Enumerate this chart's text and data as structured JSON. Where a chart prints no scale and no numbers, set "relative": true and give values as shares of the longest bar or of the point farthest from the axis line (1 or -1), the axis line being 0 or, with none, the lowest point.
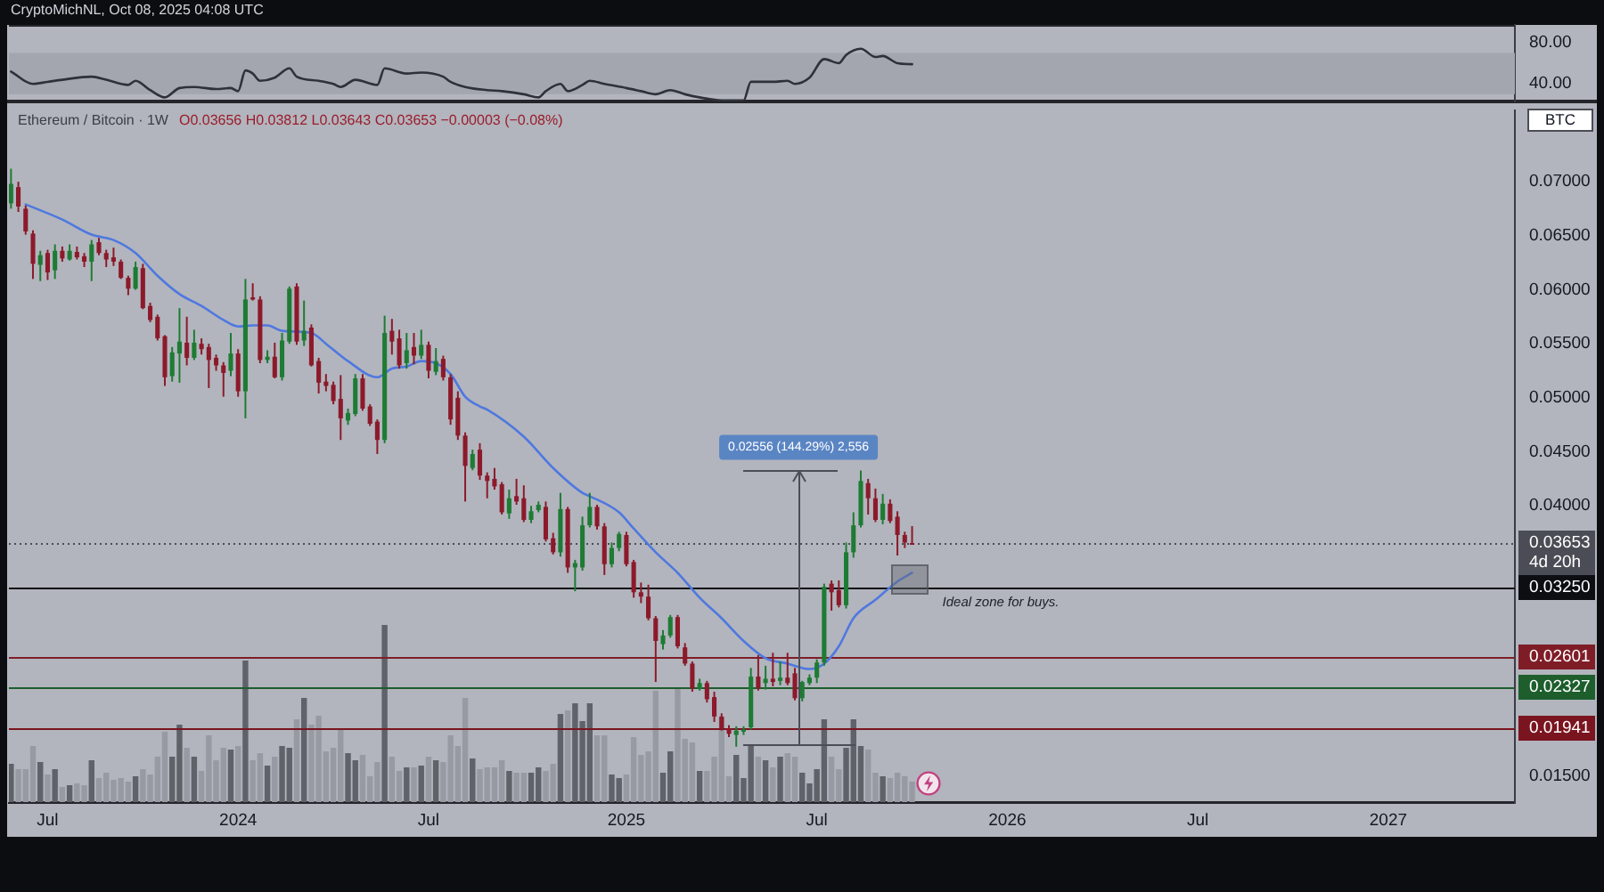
{
  "chart_data": [
    {
      "type": "line",
      "x": [
        "2023-05-29",
        "2023-06-19",
        "2023-07-03",
        "2023-07-17",
        "2023-08-14",
        "2023-08-28",
        "2023-09-18",
        "2023-09-25",
        "2023-10-09",
        "2023-10-23",
        "2023-11-06",
        "2023-11-20",
        "2023-12-11",
        "2023-12-25",
        "2024-01-01",
        "2024-01-08",
        "2024-01-15",
        "2024-01-22",
        "2024-02-05",
        "2024-02-19",
        "2024-02-26",
        "2024-03-18",
        "2024-04-01",
        "2024-04-08",
        "2024-04-22",
        "2024-05-13",
        "2024-05-20",
        "2024-06-10",
        "2024-06-24",
        "2024-07-15",
        "2024-07-22",
        "2024-08-05",
        "2024-08-26",
        "2024-09-09",
        "2024-09-30",
        "2024-10-14",
        "2024-10-21",
        "2024-11-04",
        "2024-11-11",
        "2024-11-25",
        "2024-12-02",
        "2024-12-16",
        "2025-01-06",
        "2025-01-20",
        "2025-02-03",
        "2025-02-17",
        "2025-03-03",
        "2025-03-17",
        "2025-04-07",
        "2025-04-28",
        "2025-05-05",
        "2025-05-26",
        "2025-06-09",
        "2025-06-16",
        "2025-06-30",
        "2025-07-14",
        "2025-07-28",
        "2025-08-04",
        "2025-08-18",
        "2025-09-01",
        "2025-09-08",
        "2025-09-22",
        "2025-10-06"
      ],
      "values": [
        52,
        40,
        42,
        44,
        47,
        44,
        39,
        43,
        34,
        27,
        36,
        37,
        35,
        36,
        33,
        53,
        50,
        43,
        46,
        55,
        47,
        43,
        40,
        37,
        44,
        39,
        55,
        50,
        51,
        47,
        42,
        37,
        34,
        33,
        30,
        27,
        33,
        40,
        33,
        39,
        43,
        40,
        36,
        33,
        30,
        34,
        30,
        27,
        24,
        24,
        42,
        42,
        43,
        40,
        46,
        64,
        60,
        68,
        74,
        66,
        67,
        60,
        59
      ],
      "color": "#2e3138",
      "xlim": [
        "2023-05-27",
        "2027-05-05"
      ],
      "ylim": [
        23,
        97
      ],
      "yticks": [
        {
          "value": 80,
          "label": "80.00"
        },
        {
          "value": 40,
          "label": "40.00"
        }
      ],
      "bands": [
        {
          "axis": "y",
          "from": 30,
          "to": 70,
          "color": "#a3a6ae"
        }
      ],
      "tick_labels": "y",
      "annotations": [
        "CryptoMichNL, Oct 08, 2025 04:08 UTC"
      ]
    },
    {
      "type": "candlestick",
      "title": "Ethereum / Bitcoin · 1W",
      "subtitle": "O0.03656 H0.03812 L0.03643 C0.03653 −0.00003 (−0.08%)",
      "ylabel": "BTC",
      "x": [
        "2023-05-29",
        "2023-06-05",
        "2023-06-12",
        "2023-06-19",
        "2023-06-26",
        "2023-07-03",
        "2023-07-10",
        "2023-07-17",
        "2023-07-24",
        "2023-07-31",
        "2023-08-07",
        "2023-08-14",
        "2023-08-21",
        "2023-08-28",
        "2023-09-04",
        "2023-09-11",
        "2023-09-18",
        "2023-09-25",
        "2023-10-02",
        "2023-10-09",
        "2023-10-16",
        "2023-10-23",
        "2023-10-30",
        "2023-11-06",
        "2023-11-13",
        "2023-11-20",
        "2023-11-27",
        "2023-12-04",
        "2023-12-11",
        "2023-12-18",
        "2023-12-25",
        "2024-01-01",
        "2024-01-08",
        "2024-01-15",
        "2024-01-22",
        "2024-01-29",
        "2024-02-05",
        "2024-02-12",
        "2024-02-19",
        "2024-02-26",
        "2024-03-04",
        "2024-03-11",
        "2024-03-18",
        "2024-03-25",
        "2024-04-01",
        "2024-04-08",
        "2024-04-15",
        "2024-04-22",
        "2024-04-29",
        "2024-05-06",
        "2024-05-13",
        "2024-05-20",
        "2024-05-27",
        "2024-06-03",
        "2024-06-10",
        "2024-06-17",
        "2024-06-24",
        "2024-07-01",
        "2024-07-08",
        "2024-07-15",
        "2024-07-22",
        "2024-07-29",
        "2024-08-05",
        "2024-08-12",
        "2024-08-19",
        "2024-08-26",
        "2024-09-02",
        "2024-09-09",
        "2024-09-16",
        "2024-09-23",
        "2024-09-30",
        "2024-10-07",
        "2024-10-14",
        "2024-10-21",
        "2024-10-28",
        "2024-11-04",
        "2024-11-11",
        "2024-11-18",
        "2024-11-25",
        "2024-12-02",
        "2024-12-09",
        "2024-12-16",
        "2024-12-23",
        "2024-12-30",
        "2025-01-06",
        "2025-01-13",
        "2025-01-20",
        "2025-01-27",
        "2025-02-03",
        "2025-02-10",
        "2025-02-17",
        "2025-02-24",
        "2025-03-03",
        "2025-03-10",
        "2025-03-17",
        "2025-03-24",
        "2025-03-31",
        "2025-04-07",
        "2025-04-14",
        "2025-04-21",
        "2025-04-28",
        "2025-05-05",
        "2025-05-12",
        "2025-05-19",
        "2025-05-26",
        "2025-06-02",
        "2025-06-09",
        "2025-06-16",
        "2025-06-23",
        "2025-06-30",
        "2025-07-07",
        "2025-07-14",
        "2025-07-21",
        "2025-07-28",
        "2025-08-04",
        "2025-08-11",
        "2025-08-18",
        "2025-08-25",
        "2025-09-01",
        "2025-09-08",
        "2025-09-15",
        "2025-09-22",
        "2025-09-29",
        "2025-10-06"
      ],
      "xlim": [
        "2023-05-27",
        "2027-05-05"
      ],
      "xticks": [
        {
          "value": "2023-07-03",
          "label": "Jul"
        },
        {
          "value": "2024-01-01",
          "label": "2024"
        },
        {
          "value": "2024-07-01",
          "label": "Jul"
        },
        {
          "value": "2025-01-06",
          "label": "2025"
        },
        {
          "value": "2025-07-07",
          "label": "Jul"
        },
        {
          "value": "2026-01-05",
          "label": "2026"
        },
        {
          "value": "2026-07-06",
          "label": "Jul"
        },
        {
          "value": "2027-01-04",
          "label": "2027"
        }
      ],
      "ylim": [
        0.0125,
        0.0766
      ],
      "yticks": [
        {
          "value": 0.07,
          "label": "0.07000"
        },
        {
          "value": 0.065,
          "label": "0.06500"
        },
        {
          "value": 0.06,
          "label": "0.06000"
        },
        {
          "value": 0.055,
          "label": "0.05500"
        },
        {
          "value": 0.05,
          "label": "0.05000"
        },
        {
          "value": 0.045,
          "label": "0.04500"
        },
        {
          "value": 0.04,
          "label": "0.04000"
        },
        {
          "value": 0.015,
          "label": "0.01500"
        }
      ],
      "series": [
        {
          "ohlc": [
            [
              0.068,
              0.0712,
              0.0675,
              0.0698
            ],
            [
              0.0695,
              0.07,
              0.0672,
              0.0677
            ],
            [
              0.0675,
              0.0678,
              0.0651,
              0.0654
            ],
            [
              0.0652,
              0.0655,
              0.061,
              0.0624
            ],
            [
              0.0623,
              0.0636,
              0.0608,
              0.0632
            ],
            [
              0.0634,
              0.0637,
              0.0609,
              0.0616
            ],
            [
              0.0618,
              0.0642,
              0.061,
              0.0636
            ],
            [
              0.0636,
              0.064,
              0.0626,
              0.0629
            ],
            [
              0.0628,
              0.0642,
              0.0627,
              0.0636
            ],
            [
              0.0635,
              0.064,
              0.0628,
              0.063
            ],
            [
              0.0631,
              0.0634,
              0.0621,
              0.0626
            ],
            [
              0.0626,
              0.0646,
              0.0608,
              0.0642
            ],
            [
              0.0644,
              0.0648,
              0.0632,
              0.0634
            ],
            [
              0.0634,
              0.0637,
              0.0621,
              0.0628
            ],
            [
              0.063,
              0.0639,
              0.0622,
              0.0626
            ],
            [
              0.0626,
              0.0628,
              0.061,
              0.0611
            ],
            [
              0.0611,
              0.0613,
              0.0595,
              0.0601
            ],
            [
              0.0601,
              0.0626,
              0.06,
              0.0621
            ],
            [
              0.062,
              0.0624,
              0.0582,
              0.0583
            ],
            [
              0.0585,
              0.0588,
              0.057,
              0.0572
            ],
            [
              0.0575,
              0.0577,
              0.0553,
              0.0555
            ],
            [
              0.0557,
              0.0558,
              0.0511,
              0.0519
            ],
            [
              0.052,
              0.0547,
              0.0515,
              0.0542
            ],
            [
              0.0541,
              0.0583,
              0.0514,
              0.0552
            ],
            [
              0.0551,
              0.0575,
              0.053,
              0.0537
            ],
            [
              0.0537,
              0.0563,
              0.0535,
              0.0551
            ],
            [
              0.055,
              0.0555,
              0.054,
              0.0545
            ],
            [
              0.0547,
              0.055,
              0.0509,
              0.0535
            ],
            [
              0.0537,
              0.054,
              0.0525,
              0.053
            ],
            [
              0.053,
              0.0533,
              0.0501,
              0.0523
            ],
            [
              0.0525,
              0.056,
              0.052,
              0.0541
            ],
            [
              0.0541,
              0.0545,
              0.0501,
              0.0506
            ],
            [
              0.0506,
              0.061,
              0.0481,
              0.0591
            ],
            [
              0.0593,
              0.0606,
              0.059,
              0.0591
            ],
            [
              0.0591,
              0.0594,
              0.0532,
              0.0535
            ],
            [
              0.0535,
              0.0544,
              0.0532,
              0.0538
            ],
            [
              0.0538,
              0.0551,
              0.0518,
              0.0519
            ],
            [
              0.0519,
              0.056,
              0.0516,
              0.0553
            ],
            [
              0.0552,
              0.0603,
              0.055,
              0.0601
            ],
            [
              0.0603,
              0.0606,
              0.0549,
              0.0552
            ],
            [
              0.0553,
              0.059,
              0.0548,
              0.0562
            ],
            [
              0.0565,
              0.0568,
              0.0529,
              0.053
            ],
            [
              0.0534,
              0.0537,
              0.0504,
              0.0514
            ],
            [
              0.0515,
              0.0522,
              0.0506,
              0.0511
            ],
            [
              0.0512,
              0.0515,
              0.0494,
              0.0497
            ],
            [
              0.0499,
              0.0521,
              0.0461,
              0.0481
            ],
            [
              0.0479,
              0.049,
              0.0475,
              0.0486
            ],
            [
              0.0485,
              0.0522,
              0.0483,
              0.0518
            ],
            [
              0.0518,
              0.0522,
              0.0488,
              0.049
            ],
            [
              0.0492,
              0.0494,
              0.0474,
              0.0476
            ],
            [
              0.0478,
              0.048,
              0.0448,
              0.0461
            ],
            [
              0.0461,
              0.0576,
              0.0458,
              0.056
            ],
            [
              0.0562,
              0.0573,
              0.054,
              0.0552
            ],
            [
              0.0555,
              0.0563,
              0.0527,
              0.053
            ],
            [
              0.0532,
              0.056,
              0.0527,
              0.0544
            ],
            [
              0.0547,
              0.056,
              0.0531,
              0.0539
            ],
            [
              0.0539,
              0.0563,
              0.0536,
              0.0549
            ],
            [
              0.0549,
              0.0552,
              0.0518,
              0.0525
            ],
            [
              0.0524,
              0.0546,
              0.0521,
              0.0534
            ],
            [
              0.0536,
              0.0539,
              0.0516,
              0.0519
            ],
            [
              0.0519,
              0.0522,
              0.0475,
              0.048
            ],
            [
              0.05,
              0.0506,
              0.0461,
              0.0465
            ],
            [
              0.0465,
              0.0468,
              0.0404,
              0.0437
            ],
            [
              0.0435,
              0.0452,
              0.0433,
              0.0448
            ],
            [
              0.0452,
              0.0458,
              0.0424,
              0.0428
            ],
            [
              0.0428,
              0.0431,
              0.0407,
              0.0423
            ],
            [
              0.0425,
              0.0435,
              0.0415,
              0.0418
            ],
            [
              0.042,
              0.0422,
              0.0392,
              0.0394
            ],
            [
              0.0393,
              0.0415,
              0.0388,
              0.0407
            ],
            [
              0.0409,
              0.0425,
              0.0401,
              0.0404
            ],
            [
              0.0407,
              0.0419,
              0.0385,
              0.0387
            ],
            [
              0.0387,
              0.04,
              0.0384,
              0.0395
            ],
            [
              0.0396,
              0.0404,
              0.0394,
              0.0401
            ],
            [
              0.0399,
              0.0404,
              0.0367,
              0.0369
            ],
            [
              0.037,
              0.0375,
              0.0355,
              0.0357
            ],
            [
              0.0357,
              0.0412,
              0.0353,
              0.0397
            ],
            [
              0.0397,
              0.0399,
              0.0338,
              0.0343
            ],
            [
              0.0343,
              0.035,
              0.0321,
              0.0347
            ],
            [
              0.0343,
              0.039,
              0.034,
              0.0382
            ],
            [
              0.0382,
              0.0412,
              0.038,
              0.0399
            ],
            [
              0.0399,
              0.0401,
              0.0378,
              0.0381
            ],
            [
              0.0381,
              0.0384,
              0.0336,
              0.0346
            ],
            [
              0.0346,
              0.0366,
              0.0343,
              0.0361
            ],
            [
              0.0361,
              0.0376,
              0.0358,
              0.0374
            ],
            [
              0.0373,
              0.0376,
              0.0344,
              0.0346
            ],
            [
              0.0348,
              0.035,
              0.0315,
              0.032
            ],
            [
              0.032,
              0.0329,
              0.031,
              0.0316
            ],
            [
              0.0316,
              0.0327,
              0.0294,
              0.0296
            ],
            [
              0.0296,
              0.0298,
              0.0237,
              0.0275
            ],
            [
              0.0272,
              0.0285,
              0.0267,
              0.028
            ],
            [
              0.028,
              0.0299,
              0.0278,
              0.0297
            ],
            [
              0.0297,
              0.0299,
              0.0268,
              0.027
            ],
            [
              0.0269,
              0.0273,
              0.0252,
              0.0254
            ],
            [
              0.0254,
              0.0256,
              0.0228,
              0.0231
            ],
            [
              0.0231,
              0.024,
              0.0229,
              0.0236
            ],
            [
              0.0236,
              0.0238,
              0.0218,
              0.0221
            ],
            [
              0.0223,
              0.0228,
              0.02,
              0.0205
            ],
            [
              0.0205,
              0.0208,
              0.0192,
              0.0194
            ],
            [
              0.0194,
              0.0197,
              0.0186,
              0.0189
            ],
            [
              0.0188,
              0.0196,
              0.01771,
              0.0192
            ],
            [
              0.0191,
              0.0196,
              0.0188,
              0.0193
            ],
            [
              0.0195,
              0.025,
              0.0193,
              0.0242
            ],
            [
              0.0242,
              0.0262,
              0.0229,
              0.0231
            ],
            [
              0.0236,
              0.0252,
              0.023,
              0.024
            ],
            [
              0.024,
              0.0264,
              0.0233,
              0.0237
            ],
            [
              0.0238,
              0.0256,
              0.0234,
              0.0241
            ],
            [
              0.0241,
              0.0264,
              0.0234,
              0.0236
            ],
            [
              0.0245,
              0.025,
              0.022,
              0.0222
            ],
            [
              0.0222,
              0.0238,
              0.0219,
              0.0237
            ],
            [
              0.0236,
              0.0244,
              0.0234,
              0.0241
            ],
            [
              0.0241,
              0.0258,
              0.0236,
              0.0255
            ],
            [
              0.0255,
              0.0328,
              0.0252,
              0.0325
            ],
            [
              0.0328,
              0.0331,
              0.0303,
              0.032
            ],
            [
              0.0322,
              0.0331,
              0.0306,
              0.0308
            ],
            [
              0.0308,
              0.0366,
              0.0305,
              0.0357
            ],
            [
              0.0357,
              0.0394,
              0.0352,
              0.0382
            ],
            [
              0.0382,
              0.04327,
              0.038,
              0.0423
            ],
            [
              0.0421,
              0.0425,
              0.0392,
              0.0407
            ],
            [
              0.0407,
              0.0416,
              0.0385,
              0.0387
            ],
            [
              0.0387,
              0.0411,
              0.0383,
              0.0402
            ],
            [
              0.0402,
              0.0406,
              0.0384,
              0.0386
            ],
            [
              0.039,
              0.0395,
              0.0354,
              0.0373
            ],
            [
              0.0373,
              0.0376,
              0.0361,
              0.0366
            ],
            [
              0.03656,
              0.03812,
              0.03643,
              0.03653
            ]
          ],
          "colors": [
            "#1e7b34",
            "#8c1a2b",
            "#8c1a2b",
            "#8c1a2b",
            "#1e7b34",
            "#8c1a2b",
            "#1e7b34",
            "#8c1a2b",
            "#1e7b34",
            "#8c1a2b",
            "#8c1a2b",
            "#1e7b34",
            "#8c1a2b",
            "#8c1a2b",
            "#8c1a2b",
            "#8c1a2b",
            "#8c1a2b",
            "#1e7b34",
            "#8c1a2b",
            "#8c1a2b",
            "#8c1a2b",
            "#8c1a2b",
            "#1e7b34",
            "#1e7b34",
            "#8c1a2b",
            "#1e7b34",
            "#8c1a2b",
            "#8c1a2b",
            "#8c1a2b",
            "#8c1a2b",
            "#1e7b34",
            "#8c1a2b",
            "#1e7b34",
            "#8c1a2b",
            "#8c1a2b",
            "#1e7b34",
            "#8c1a2b",
            "#1e7b34",
            "#1e7b34",
            "#8c1a2b",
            "#1e7b34",
            "#8c1a2b",
            "#8c1a2b",
            "#8c1a2b",
            "#8c1a2b",
            "#8c1a2b",
            "#1e7b34",
            "#1e7b34",
            "#8c1a2b",
            "#8c1a2b",
            "#8c1a2b",
            "#1e7b34",
            "#8c1a2b",
            "#8c1a2b",
            "#1e7b34",
            "#8c1a2b",
            "#1e7b34",
            "#8c1a2b",
            "#1e7b34",
            "#8c1a2b",
            "#8c1a2b",
            "#8c1a2b",
            "#8c1a2b",
            "#1e7b34",
            "#8c1a2b",
            "#8c1a2b",
            "#8c1a2b",
            "#8c1a2b",
            "#1e7b34",
            "#8c1a2b",
            "#8c1a2b",
            "#1e7b34",
            "#1e7b34",
            "#8c1a2b",
            "#8c1a2b",
            "#1e7b34",
            "#8c1a2b",
            "#1e7b34",
            "#1e7b34",
            "#1e7b34",
            "#8c1a2b",
            "#8c1a2b",
            "#1e7b34",
            "#1e7b34",
            "#8c1a2b",
            "#8c1a2b",
            "#8c1a2b",
            "#8c1a2b",
            "#8c1a2b",
            "#1e7b34",
            "#1e7b34",
            "#8c1a2b",
            "#8c1a2b",
            "#8c1a2b",
            "#1e7b34",
            "#8c1a2b",
            "#8c1a2b",
            "#8c1a2b",
            "#8c1a2b",
            "#1e7b34",
            "#1e7b34",
            "#1e7b34",
            "#8c1a2b",
            "#1e7b34",
            "#8c1a2b",
            "#1e7b34",
            "#8c1a2b",
            "#8c1a2b",
            "#1e7b34",
            "#1e7b34",
            "#1e7b34",
            "#1e7b34",
            "#8c1a2b",
            "#8c1a2b",
            "#1e7b34",
            "#1e7b34",
            "#1e7b34",
            "#8c1a2b",
            "#8c1a2b",
            "#1e7b34",
            "#8c1a2b",
            "#8c1a2b",
            "#8c1a2b",
            "#8c1a2b"
          ]
        },
        {
          "type": "line",
          "color": "#4f78e0",
          "x": [
            "2023-06-12",
            "2023-07-17",
            "2023-08-14",
            "2023-09-04",
            "2023-09-25",
            "2023-10-16",
            "2023-11-06",
            "2023-11-27",
            "2023-12-18",
            "2024-01-01",
            "2024-01-15",
            "2024-01-29",
            "2024-02-12",
            "2024-03-11",
            "2024-03-25",
            "2024-04-15",
            "2024-05-13",
            "2024-05-27",
            "2024-06-10",
            "2024-06-24",
            "2024-07-08",
            "2024-07-22",
            "2024-08-05",
            "2024-08-19",
            "2024-08-26",
            "2024-09-30",
            "2024-10-28",
            "2024-11-25",
            "2024-12-02",
            "2024-12-30",
            "2025-01-13",
            "2025-02-03",
            "2025-02-24",
            "2025-03-17",
            "2025-04-07",
            "2025-04-28",
            "2025-05-19",
            "2025-06-09",
            "2025-06-30",
            "2025-07-14",
            "2025-07-28",
            "2025-08-11",
            "2025-09-01",
            "2025-09-22",
            "2025-10-06"
          ],
          "values": [
            0.0679,
            0.0665,
            0.0651,
            0.0646,
            0.0634,
            0.0613,
            0.0596,
            0.0585,
            0.0572,
            0.0566,
            0.0567,
            0.0567,
            0.0562,
            0.056,
            0.055,
            0.0534,
            0.0519,
            0.0527,
            0.0529,
            0.0534,
            0.0532,
            0.0522,
            0.0501,
            0.0492,
            0.0489,
            0.0464,
            0.0435,
            0.0412,
            0.0409,
            0.0394,
            0.0379,
            0.0357,
            0.0338,
            0.0315,
            0.0296,
            0.0275,
            0.0259,
            0.0254,
            0.0249,
            0.0254,
            0.027,
            0.0296,
            0.0313,
            0.033,
            0.0338
          ]
        }
      ],
      "ref_lines": [
        {
          "axis": "y",
          "value": 0.03653,
          "label": "0.03653\n4d 20h",
          "color": "#4a4d55",
          "line_style": "dotted"
        },
        {
          "axis": "y",
          "value": 0.0325,
          "label": "0.03250",
          "color": "#0d0e12"
        },
        {
          "axis": "y",
          "value": 0.02601,
          "label": "0.02601",
          "color": "#7f1d27"
        },
        {
          "axis": "y",
          "value": 0.02327,
          "label": "0.02327",
          "color": "#1d5e2c"
        },
        {
          "axis": "y",
          "value": 0.01941,
          "label": "0.01941",
          "color": "#7a1520"
        }
      ],
      "annotations": [
        {
          "text": "0.02556 (144.29%) 2,556",
          "x": "2025-08-18",
          "y": 0.04327
        },
        {
          "text": "Ideal zone for buys.",
          "x": "2025-11-04",
          "y": 0.0325
        }
      ]
    },
    {
      "type": "bar",
      "relative": true,
      "x": [
        "2023-05-29",
        "2023-06-05",
        "2023-06-12",
        "2023-06-19",
        "2023-06-26",
        "2023-07-03",
        "2023-07-10",
        "2023-07-17",
        "2023-07-24",
        "2023-07-31",
        "2023-08-07",
        "2023-08-14",
        "2023-08-21",
        "2023-08-28",
        "2023-09-04",
        "2023-09-11",
        "2023-09-18",
        "2023-09-25",
        "2023-10-02",
        "2023-10-09",
        "2023-10-16",
        "2023-10-23",
        "2023-10-30",
        "2023-11-06",
        "2023-11-13",
        "2023-11-20",
        "2023-11-27",
        "2023-12-04",
        "2023-12-11",
        "2023-12-18",
        "2023-12-25",
        "2024-01-01",
        "2024-01-08",
        "2024-01-15",
        "2024-01-22",
        "2024-01-29",
        "2024-02-05",
        "2024-02-12",
        "2024-02-19",
        "2024-02-26",
        "2024-03-04",
        "2024-03-11",
        "2024-03-18",
        "2024-03-25",
        "2024-04-01",
        "2024-04-08",
        "2024-04-15",
        "2024-04-22",
        "2024-04-29",
        "2024-05-06",
        "2024-05-13",
        "2024-05-20",
        "2024-05-27",
        "2024-06-03",
        "2024-06-10",
        "2024-06-17",
        "2024-06-24",
        "2024-07-01",
        "2024-07-08",
        "2024-07-15",
        "2024-07-22",
        "2024-07-29",
        "2024-08-05",
        "2024-08-12",
        "2024-08-19",
        "2024-08-26",
        "2024-09-02",
        "2024-09-09",
        "2024-09-16",
        "2024-09-23",
        "2024-09-30",
        "2024-10-07",
        "2024-10-14",
        "2024-10-21",
        "2024-10-28",
        "2024-11-04",
        "2024-11-11",
        "2024-11-18",
        "2024-11-25",
        "2024-12-02",
        "2024-12-09",
        "2024-12-16",
        "2024-12-23",
        "2024-12-30",
        "2025-01-06",
        "2025-01-13",
        "2025-01-20",
        "2025-01-27",
        "2025-02-03",
        "2025-02-10",
        "2025-02-17",
        "2025-02-24",
        "2025-03-03",
        "2025-03-10",
        "2025-03-17",
        "2025-03-24",
        "2025-03-31",
        "2025-04-07",
        "2025-04-14",
        "2025-04-21",
        "2025-04-28",
        "2025-05-05",
        "2025-05-12",
        "2025-05-19",
        "2025-05-26",
        "2025-06-02",
        "2025-06-09",
        "2025-06-16",
        "2025-06-23",
        "2025-06-30",
        "2025-07-07",
        "2025-07-14",
        "2025-07-21",
        "2025-07-28",
        "2025-08-04",
        "2025-08-11",
        "2025-08-18",
        "2025-08-25",
        "2025-09-01",
        "2025-09-08",
        "2025-09-15",
        "2025-09-22",
        "2025-09-29",
        "2025-10-06"
      ],
      "values": [
        0.22,
        0.19,
        0.19,
        0.32,
        0.23,
        0.16,
        0.19,
        0.09,
        0.1,
        0.11,
        0.1,
        0.24,
        0.14,
        0.17,
        0.13,
        0.14,
        0.12,
        0.15,
        0.19,
        0.16,
        0.26,
        0.4,
        0.26,
        0.44,
        0.31,
        0.26,
        0.18,
        0.38,
        0.24,
        0.31,
        0.3,
        0.32,
        0.8,
        0.24,
        0.28,
        0.21,
        0.26,
        0.32,
        0.31,
        0.47,
        0.59,
        0.44,
        0.49,
        0.29,
        0.31,
        0.42,
        0.28,
        0.24,
        0.27,
        0.15,
        0.23,
        1,
        0.26,
        0.18,
        0.2,
        0.2,
        0.21,
        0.26,
        0.24,
        0.23,
        0.38,
        0.32,
        0.59,
        0.25,
        0.19,
        0.2,
        0.2,
        0.24,
        0.18,
        0.17,
        0.17,
        0.17,
        0.2,
        0.18,
        0.22,
        0.5,
        0.52,
        0.56,
        0.46,
        0.56,
        0.38,
        0.38,
        0.16,
        0.14,
        0.16,
        0.37,
        0.27,
        0.29,
        0.63,
        0.17,
        0.29,
        0.64,
        0.36,
        0.34,
        0.18,
        0.18,
        0.26,
        0.48,
        0.15,
        0.27,
        0.14,
        0.32,
        0.26,
        0.24,
        0.2,
        0.26,
        0.28,
        0.26,
        0.17,
        0.11,
        0.19,
        0.47,
        0.26,
        0.19,
        0.31,
        0.47,
        0.32,
        0.3,
        0.17,
        0.15,
        0.14,
        0.17,
        0.15,
        0.12
      ],
      "colors": [
        "#5f6269",
        "#979aa2",
        "#979aa2",
        "#979aa2",
        "#5f6269",
        "#979aa2",
        "#5f6269",
        "#979aa2",
        "#5f6269",
        "#979aa2",
        "#979aa2",
        "#5f6269",
        "#979aa2",
        "#979aa2",
        "#979aa2",
        "#979aa2",
        "#979aa2",
        "#5f6269",
        "#979aa2",
        "#979aa2",
        "#979aa2",
        "#979aa2",
        "#5f6269",
        "#5f6269",
        "#979aa2",
        "#5f6269",
        "#979aa2",
        "#979aa2",
        "#979aa2",
        "#979aa2",
        "#5f6269",
        "#979aa2",
        "#5f6269",
        "#979aa2",
        "#979aa2",
        "#5f6269",
        "#979aa2",
        "#5f6269",
        "#5f6269",
        "#979aa2",
        "#5f6269",
        "#979aa2",
        "#979aa2",
        "#979aa2",
        "#979aa2",
        "#979aa2",
        "#5f6269",
        "#5f6269",
        "#979aa2",
        "#979aa2",
        "#979aa2",
        "#5f6269",
        "#979aa2",
        "#979aa2",
        "#5f6269",
        "#979aa2",
        "#5f6269",
        "#979aa2",
        "#5f6269",
        "#979aa2",
        "#979aa2",
        "#979aa2",
        "#979aa2",
        "#5f6269",
        "#979aa2",
        "#979aa2",
        "#979aa2",
        "#979aa2",
        "#5f6269",
        "#979aa2",
        "#979aa2",
        "#5f6269",
        "#5f6269",
        "#979aa2",
        "#979aa2",
        "#5f6269",
        "#979aa2",
        "#5f6269",
        "#5f6269",
        "#5f6269",
        "#979aa2",
        "#979aa2",
        "#5f6269",
        "#5f6269",
        "#979aa2",
        "#979aa2",
        "#979aa2",
        "#979aa2",
        "#979aa2",
        "#5f6269",
        "#5f6269",
        "#979aa2",
        "#979aa2",
        "#979aa2",
        "#5f6269",
        "#979aa2",
        "#979aa2",
        "#979aa2",
        "#979aa2",
        "#5f6269",
        "#5f6269",
        "#5f6269",
        "#979aa2",
        "#5f6269",
        "#979aa2",
        "#5f6269",
        "#979aa2",
        "#979aa2",
        "#5f6269",
        "#5f6269",
        "#5f6269",
        "#5f6269",
        "#979aa2",
        "#979aa2",
        "#5f6269",
        "#5f6269",
        "#5f6269",
        "#979aa2",
        "#979aa2",
        "#5f6269",
        "#979aa2",
        "#979aa2",
        "#979aa2",
        "#979aa2"
      ],
      "xlim": [
        "2023-05-27",
        "2027-05-05"
      ],
      "tick_labels": false
    }
  ]
}
